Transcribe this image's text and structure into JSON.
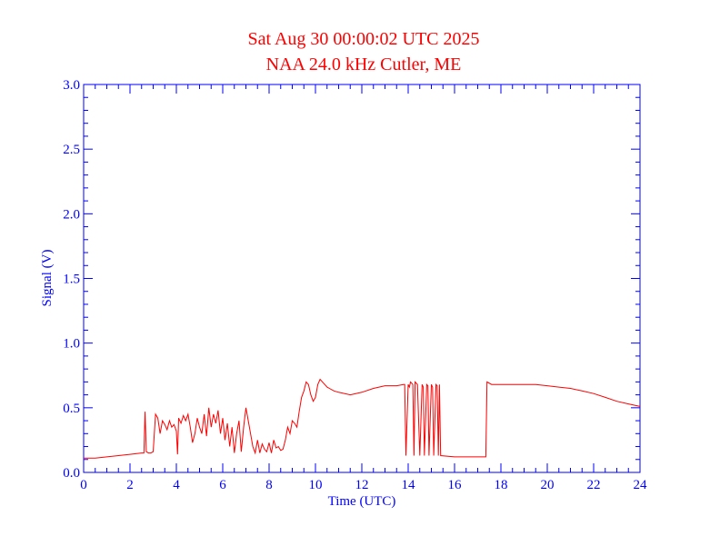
{
  "chart_data": {
    "type": "line",
    "title": "Sat Aug 30 00:00:02 UTC 2025",
    "subtitle": "NAA 24.0 kHz Cutler, ME",
    "xlabel": "Time (UTC)",
    "ylabel": "Signal (V)",
    "xlim": [
      0,
      24
    ],
    "ylim": [
      0,
      3.0
    ],
    "xticks": [
      0,
      2,
      4,
      6,
      8,
      10,
      12,
      14,
      16,
      18,
      20,
      22,
      24
    ],
    "xtick_labels": [
      "0",
      "2",
      "4",
      "6",
      "8",
      "10",
      "12",
      "14",
      "16",
      "18",
      "20",
      "22",
      "24"
    ],
    "yticks": [
      0,
      0.5,
      1.0,
      1.5,
      2.0,
      2.5,
      3.0
    ],
    "ytick_labels": [
      "0.0",
      "0.5",
      "1.0",
      "1.5",
      "2.0",
      "2.5",
      "3.0"
    ],
    "grid": false,
    "colors": {
      "axis": "#0000ff",
      "series": "#ff0000",
      "title": "#ff0000"
    },
    "series": [
      {
        "x": [
          0,
          0.5,
          1.0,
          1.5,
          2.0,
          2.5,
          2.6,
          2.65,
          2.7,
          2.8,
          2.9,
          3.0,
          3.1,
          3.2,
          3.3,
          3.4,
          3.5,
          3.6,
          3.7,
          3.8,
          3.9,
          4.0,
          4.05,
          4.1,
          4.2,
          4.3,
          4.4,
          4.5,
          4.6,
          4.7,
          4.8,
          4.9,
          5.0,
          5.1,
          5.2,
          5.3,
          5.4,
          5.5,
          5.6,
          5.7,
          5.8,
          5.9,
          6.0,
          6.1,
          6.2,
          6.3,
          6.4,
          6.5,
          6.6,
          6.7,
          6.8,
          6.9,
          7.0,
          7.1,
          7.2,
          7.3,
          7.4,
          7.5,
          7.6,
          7.7,
          7.8,
          7.9,
          8.0,
          8.1,
          8.2,
          8.3,
          8.4,
          8.5,
          8.6,
          8.7,
          8.8,
          8.9,
          9.0,
          9.1,
          9.2,
          9.3,
          9.4,
          9.5,
          9.6,
          9.7,
          9.8,
          9.9,
          10.0,
          10.1,
          10.2,
          10.3,
          10.4,
          10.5,
          10.6,
          10.8,
          11.0,
          11.5,
          12.0,
          12.5,
          13.0,
          13.5,
          13.8,
          13.85,
          13.9,
          14.0,
          14.05,
          14.1,
          14.2,
          14.25,
          14.3,
          14.4,
          14.45,
          14.5,
          14.6,
          14.65,
          14.7,
          14.8,
          14.85,
          14.9,
          15.0,
          15.05,
          15.1,
          15.2,
          15.25,
          15.3,
          15.35,
          15.4,
          16.0,
          16.5,
          17.0,
          17.3,
          17.35,
          17.4,
          17.6,
          18.0,
          18.5,
          19.0,
          19.5,
          20.0,
          20.5,
          21.0,
          21.5,
          22.0,
          22.5,
          23.0,
          23.5,
          24.0
        ],
        "y": [
          0.11,
          0.11,
          0.12,
          0.13,
          0.14,
          0.15,
          0.15,
          0.47,
          0.16,
          0.15,
          0.15,
          0.16,
          0.45,
          0.42,
          0.3,
          0.4,
          0.37,
          0.33,
          0.4,
          0.35,
          0.37,
          0.32,
          0.14,
          0.42,
          0.38,
          0.44,
          0.4,
          0.45,
          0.35,
          0.23,
          0.3,
          0.42,
          0.35,
          0.3,
          0.45,
          0.28,
          0.5,
          0.35,
          0.45,
          0.38,
          0.48,
          0.3,
          0.42,
          0.25,
          0.38,
          0.2,
          0.35,
          0.15,
          0.3,
          0.4,
          0.16,
          0.35,
          0.5,
          0.4,
          0.3,
          0.2,
          0.15,
          0.25,
          0.15,
          0.22,
          0.18,
          0.16,
          0.23,
          0.15,
          0.25,
          0.19,
          0.2,
          0.17,
          0.18,
          0.25,
          0.35,
          0.3,
          0.4,
          0.38,
          0.35,
          0.47,
          0.58,
          0.63,
          0.7,
          0.68,
          0.6,
          0.55,
          0.58,
          0.68,
          0.72,
          0.7,
          0.68,
          0.66,
          0.65,
          0.63,
          0.62,
          0.6,
          0.62,
          0.65,
          0.67,
          0.67,
          0.68,
          0.68,
          0.13,
          0.68,
          0.66,
          0.7,
          0.68,
          0.13,
          0.7,
          0.68,
          0.4,
          0.13,
          0.68,
          0.66,
          0.13,
          0.68,
          0.67,
          0.13,
          0.68,
          0.66,
          0.13,
          0.68,
          0.67,
          0.13,
          0.68,
          0.13,
          0.12,
          0.12,
          0.12,
          0.12,
          0.12,
          0.7,
          0.68,
          0.68,
          0.68,
          0.68,
          0.68,
          0.67,
          0.66,
          0.65,
          0.63,
          0.61,
          0.58,
          0.55,
          0.53,
          0.51
        ]
      }
    ]
  }
}
